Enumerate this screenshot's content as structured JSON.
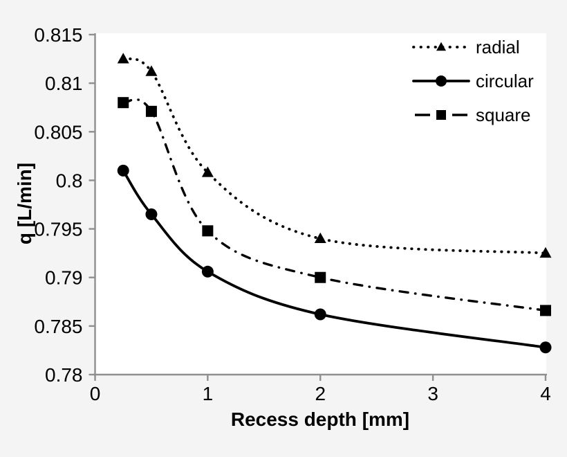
{
  "figure": {
    "background_color": "#f4f4f4",
    "plot_background_color": "#ffffff",
    "axis_color": "#8f8f8f",
    "text_color": "#000000",
    "series_color": "#000000"
  },
  "chart_data": {
    "type": "line",
    "title": "",
    "xlabel": "Recess depth [mm]",
    "ylabel": "q [L/min]",
    "x": [
      0.25,
      0.5,
      1,
      2,
      4
    ],
    "series": [
      {
        "name": "radial",
        "marker": "triangle",
        "line_style": "dotted",
        "values": [
          0.8125,
          0.8112,
          0.8008,
          0.794,
          0.7925
        ]
      },
      {
        "name": "circular",
        "marker": "circle",
        "line_style": "solid",
        "values": [
          0.801,
          0.7965,
          0.7906,
          0.7862,
          0.7828
        ]
      },
      {
        "name": "square",
        "marker": "square",
        "line_style": "dash-dot",
        "values": [
          0.808,
          0.8071,
          0.7948,
          0.79,
          0.7866
        ]
      }
    ],
    "xlim": [
      0,
      4
    ],
    "ylim": [
      0.78,
      0.815
    ],
    "x_tick_values": [
      0,
      1,
      2,
      3,
      4
    ],
    "x_tick_labels": [
      "0",
      "1",
      "2",
      "3",
      "4"
    ],
    "y_tick_values": [
      0.78,
      0.785,
      0.79,
      0.795,
      0.8,
      0.805,
      0.81,
      0.815
    ],
    "y_tick_labels": [
      "0.78",
      "0.785",
      "0.79",
      "0.795",
      "0.8",
      "0.805",
      "0.81",
      "0.815"
    ],
    "grid": false,
    "smooth_lines": true,
    "legend": {
      "position": "top-right-inside",
      "entries": [
        "radial",
        "circular",
        "square"
      ]
    }
  }
}
